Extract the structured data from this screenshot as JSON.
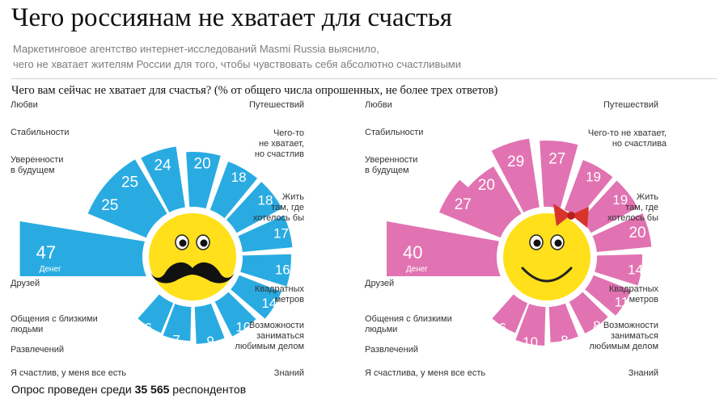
{
  "header": {
    "title": "Чего россиянам не хватает для счастья",
    "subtitle_line1": "Маркетинговое агентство интернет-исследований Masmi Russia выяснило,",
    "subtitle_line2": "чего не хватает жителям России для того, чтобы чувствовать себя абсолютно счастливыми",
    "question": "Чего вам сейчас не хватает для счастья? (% от общего числа опрошенных, не более трех ответов)"
  },
  "footer": {
    "prefix": "Опрос проведен среди",
    "count": "35 565",
    "suffix": "респондентов"
  },
  "chart_data": [
    {
      "type": "bar",
      "group": "men",
      "color": "#29abe2",
      "unit": "%",
      "categories": [
        "Денег",
        "Уверенности в будущем",
        "Стабильности",
        "Любви",
        "Путешествий",
        "Чего-то не хватает, но счастлив",
        "Жить там, где хотелось бы",
        "Квадратных метров",
        "Возможности заниматься любимым делом",
        "Знаний",
        "Я счастлив, у меня все есть",
        "Развлечений",
        "Общения с близкими людьми",
        "Друзей"
      ],
      "values": [
        47,
        25,
        25,
        24,
        20,
        18,
        18,
        17,
        16,
        14,
        10,
        9,
        7,
        6
      ],
      "money_label": "Денег",
      "labels": [
        {
          "lines": [
            "Любви"
          ]
        },
        {
          "lines": [
            "Стабильности"
          ]
        },
        {
          "lines": [
            "Уверенности",
            "в будущем"
          ]
        },
        {
          "lines": [
            "Путешествий"
          ]
        },
        {
          "lines": [
            "Чего-то",
            "не хватает,",
            "но счастлив"
          ]
        },
        {
          "lines": [
            "Жить",
            "там, где",
            "хотелось бы"
          ]
        },
        {
          "lines": [
            "Друзей"
          ]
        },
        {
          "lines": [
            "Общения с близкими",
            "людьми"
          ]
        },
        {
          "lines": [
            "Развлечений"
          ]
        },
        {
          "lines": [
            "Квадратных",
            "метров"
          ]
        },
        {
          "lines": [
            "Возможности",
            "заниматься",
            "любимым делом"
          ]
        },
        {
          "lines": [
            "Я счастлив, у меня все есть"
          ]
        },
        {
          "lines": [
            "Знаний"
          ]
        }
      ]
    },
    {
      "type": "bar",
      "group": "women",
      "color": "#e173b2",
      "unit": "%",
      "categories": [
        "Денег",
        "Уверенности в будущем",
        "Стабильности",
        "Любви",
        "Путешествий",
        "Чего-то не хватает, но счастлива",
        "Жить там, где хотелось бы",
        "Квадратных метров",
        "Возможности заниматься любимым делом",
        "Знаний",
        "Я счастлива, у меня все есть",
        "Развлечений",
        "Общения с близкими людьми",
        "Друзей"
      ],
      "values": [
        40,
        27,
        20,
        29,
        27,
        19,
        19,
        20,
        14,
        11,
        8,
        8,
        10,
        6
      ],
      "money_label": "Денег",
      "labels": [
        {
          "lines": [
            "Любви"
          ]
        },
        {
          "lines": [
            "Стабильности"
          ]
        },
        {
          "lines": [
            "Уверенности",
            "в будущем"
          ]
        },
        {
          "lines": [
            "Путешествий"
          ]
        },
        {
          "lines": [
            "Чего-то не хватает,",
            "но счастлива"
          ]
        },
        {
          "lines": [
            "Жить",
            "там, где",
            "хотелось бы"
          ]
        },
        {
          "lines": [
            "Друзей"
          ]
        },
        {
          "lines": [
            "Общения с близкими",
            "людьми"
          ]
        },
        {
          "lines": [
            "Развлечений"
          ]
        },
        {
          "lines": [
            "Квадратных",
            "метров"
          ]
        },
        {
          "lines": [
            "Возможности",
            "заниматься",
            "любимым делом"
          ]
        },
        {
          "lines": [
            "Я счастлива, у меня все есть"
          ]
        },
        {
          "lines": [
            "Знаний"
          ]
        }
      ]
    }
  ]
}
